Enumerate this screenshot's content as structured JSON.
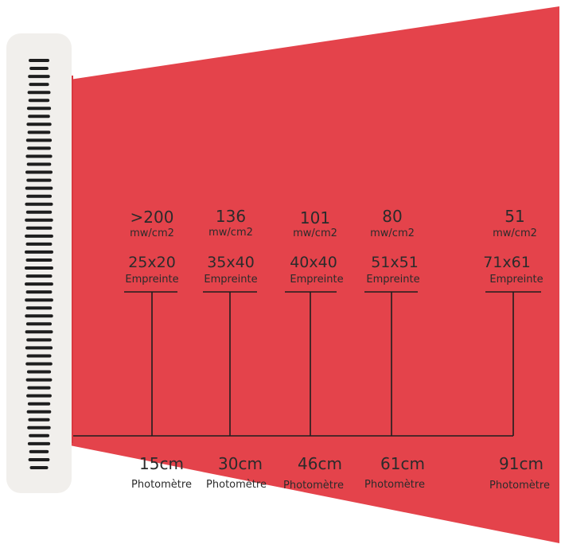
{
  "colors": {
    "beam": "#e4434b",
    "beam_edge": "#d8383f",
    "panel": "#f1efec",
    "panel_slots": "#1e1e1e",
    "lines": "#1e1e1e",
    "text": "#2b2b2b"
  },
  "measurements": [
    {
      "irradiance": ">200",
      "irradiance_unit": "mw/cm2",
      "footprint": "25x20",
      "footprint_label": "Empreinte",
      "distance": "15cm",
      "distance_label": "Photomètre"
    },
    {
      "irradiance": "136",
      "irradiance_unit": "mw/cm2",
      "footprint": "35x40",
      "footprint_label": "Empreinte",
      "distance": "30cm",
      "distance_label": "Photomètre"
    },
    {
      "irradiance": "101",
      "irradiance_unit": "mw/cm2",
      "footprint": "40x40",
      "footprint_label": "Empreinte",
      "distance": "46cm",
      "distance_label": "Photomètre"
    },
    {
      "irradiance": "80",
      "irradiance_unit": "mw/cm2",
      "footprint": "51x51",
      "footprint_label": "Empreinte",
      "distance": "61cm",
      "distance_label": "Photomètre"
    },
    {
      "irradiance": "51",
      "irradiance_unit": "mw/cm2",
      "footprint": "71x61",
      "footprint_label": "Empreinte",
      "distance": "91cm",
      "distance_label": "Photomètre"
    }
  ]
}
